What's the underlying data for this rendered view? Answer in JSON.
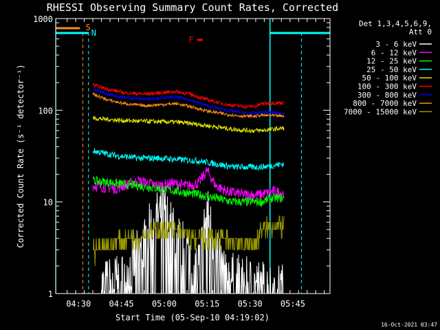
{
  "chart_data": {
    "type": "line",
    "title": "RHESSI Observing Summary Count Rates, Corrected",
    "xlabel": "Start Time (05-Sep-10 04:19:02)",
    "ylabel": "Corrected Count Rate (s⁻¹ detector⁻¹)",
    "yscale": "log",
    "ylim": [
      1,
      1000
    ],
    "xlim_minutes": [
      4,
      63
    ],
    "x_ticks": [
      {
        "minute": 12,
        "label": "04:30"
      },
      {
        "minute": 27,
        "label": "04:45"
      },
      {
        "minute": 42,
        "label": "05:00"
      },
      {
        "minute": 57,
        "label": "05:15"
      },
      {
        "minute": 72,
        "label": "05:30"
      },
      {
        "minute": 87,
        "label": "05:45"
      }
    ],
    "y_ticks": [
      {
        "value": 1,
        "label": "1"
      },
      {
        "value": 10,
        "label": "10"
      },
      {
        "value": 100,
        "label": "100"
      },
      {
        "value": 1000,
        "label": "1000"
      }
    ],
    "legend_header": [
      "Det 1,3,4,5,6,9,",
      "Att 0"
    ],
    "legend_placement": "right",
    "series": [
      {
        "name": "3 - 6 keV",
        "color": "#ffffff",
        "x": [
          20,
          28,
          34,
          38,
          42,
          46,
          50,
          54,
          57,
          60,
          64,
          70,
          76,
          80,
          84
        ],
        "y": [
          1.2,
          1.5,
          3,
          6,
          8,
          4,
          3,
          2,
          8,
          3,
          1.5,
          1.3,
          1.2,
          1.1,
          1.1
        ]
      },
      {
        "name": "6 - 12 keV",
        "color": "#ff00ff",
        "x": [
          17,
          25,
          33,
          40,
          45,
          50,
          54,
          57,
          60,
          64,
          70,
          76,
          80,
          84
        ],
        "y": [
          15,
          14,
          17,
          15,
          16,
          15,
          16,
          22,
          15,
          13,
          12,
          12,
          13,
          12.5
        ]
      },
      {
        "name": "12 - 25 keV",
        "color": "#00ff00",
        "x": [
          17,
          25,
          33,
          40,
          47,
          54,
          60,
          66,
          72,
          76,
          80,
          84
        ],
        "y": [
          17,
          16,
          15,
          14,
          13,
          12,
          11,
          10,
          10,
          10,
          11,
          11
        ]
      },
      {
        "name": "25 - 50 keV",
        "color": "#00ffff",
        "x": [
          17,
          25,
          33,
          40,
          47,
          54,
          60,
          66,
          72,
          76,
          80,
          84
        ],
        "y": [
          36,
          32,
          30,
          30,
          29,
          28,
          26,
          24,
          24,
          24,
          25,
          26
        ]
      },
      {
        "name": "50 - 100 keV",
        "color": "#e5e500",
        "x": [
          17,
          25,
          33,
          40,
          47,
          54,
          60,
          66,
          72,
          76,
          80,
          84
        ],
        "y": [
          82,
          78,
          76,
          75,
          74,
          70,
          66,
          62,
          60,
          60,
          62,
          64
        ]
      },
      {
        "name": "100 - 300 keV",
        "color": "#ff0000",
        "x": [
          17,
          22,
          28,
          35,
          41,
          46,
          51,
          57,
          64,
          70,
          74,
          76,
          80,
          84
        ],
        "y": [
          190,
          170,
          155,
          150,
          155,
          160,
          150,
          130,
          115,
          110,
          110,
          118,
          120,
          120
        ]
      },
      {
        "name": "300 - 800 keV",
        "color": "#0000ff",
        "x": [
          17,
          22,
          28,
          35,
          41,
          46,
          51,
          57,
          64,
          70,
          74,
          76,
          80,
          84
        ],
        "y": [
          170,
          150,
          138,
          132,
          136,
          140,
          130,
          112,
          100,
          94,
          93,
          95,
          95,
          92
        ]
      },
      {
        "name": "800 - 7000 keV",
        "color": "#ff8c1a",
        "x": [
          17,
          22,
          28,
          35,
          41,
          46,
          51,
          57,
          64,
          70,
          74,
          76,
          80,
          84
        ],
        "y": [
          150,
          130,
          118,
          112,
          115,
          118,
          110,
          98,
          90,
          86,
          86,
          88,
          87,
          86
        ]
      },
      {
        "name": "7000 - 15000 keV",
        "color": "#999900",
        "x": [
          17,
          24,
          30,
          36,
          40,
          46,
          52,
          58,
          64,
          70,
          74,
          76,
          80,
          84
        ],
        "y": [
          3,
          3.5,
          4,
          4.5,
          5,
          5,
          4,
          4,
          3.8,
          3.5,
          3.5,
          5,
          5.5,
          5.5
        ]
      }
    ],
    "annotations": [
      {
        "label": "S",
        "color": "#ff8c1a",
        "x_minute": 13.5
      },
      {
        "label": "N",
        "color": "#00ffff",
        "x_minute": 15.5
      },
      {
        "label": "F",
        "color": "#ff0000",
        "x_minute": 52
      }
    ],
    "timestamp": "16-Oct-2021 03:47"
  }
}
